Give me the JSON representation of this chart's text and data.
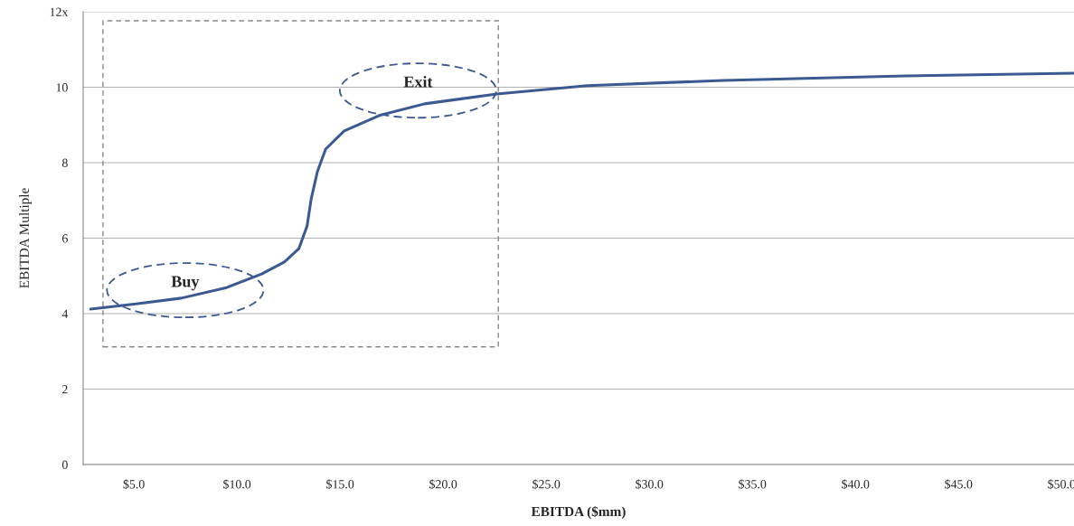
{
  "chart_data": {
    "type": "line",
    "xlabel": "EBITDA ($mm)",
    "ylabel": "EBITDA Multiple",
    "series": [
      {
        "color": "#3c5a92",
        "x": [
          2.9,
          5.1,
          7.3,
          9.5,
          11.2,
          12.3,
          13.0,
          13.4,
          13.6,
          13.9,
          14.3,
          15.2,
          16.9,
          19.1,
          22.6,
          27.0,
          33.6,
          42.4,
          50.6
        ],
        "values": [
          4.12,
          4.26,
          4.41,
          4.69,
          5.05,
          5.37,
          5.72,
          6.32,
          7.04,
          7.76,
          8.36,
          8.84,
          9.25,
          9.56,
          9.82,
          10.04,
          10.18,
          10.3,
          10.37
        ]
      }
    ],
    "xlim": [
      2.54,
      50.6
    ],
    "xticks": [
      {
        "value": 5,
        "label": "$5.0"
      },
      {
        "value": 10,
        "label": "$10.0"
      },
      {
        "value": 15,
        "label": "$15.0"
      },
      {
        "value": 20,
        "label": "$20.0"
      },
      {
        "value": 25,
        "label": "$25.0"
      },
      {
        "value": 30,
        "label": "$30.0"
      },
      {
        "value": 35,
        "label": "$35.0"
      },
      {
        "value": 40,
        "label": "$40.0"
      },
      {
        "value": 45,
        "label": "$45.0"
      },
      {
        "value": 50,
        "label": "$50.0"
      }
    ],
    "ylim": [
      0,
      12
    ],
    "yticks": [
      0,
      2,
      4,
      6,
      8,
      10,
      {
        "value": 12,
        "label": "12x"
      }
    ],
    "grid": "y",
    "annotations": [
      "Buy",
      "Exit"
    ]
  }
}
